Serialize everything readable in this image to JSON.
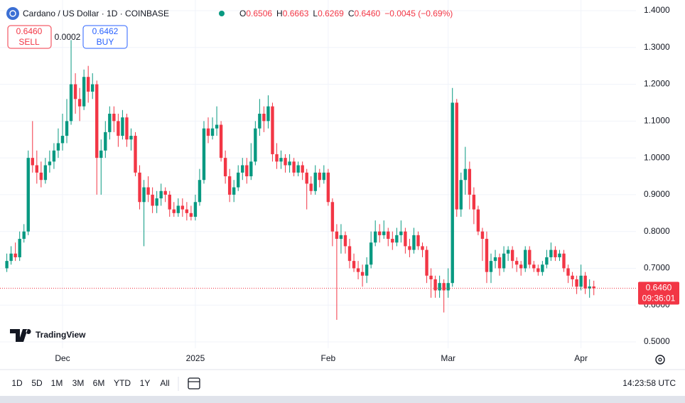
{
  "header": {
    "title": "Cardano / US Dollar · 1D · COINBASE",
    "legend": [
      {
        "label": "O",
        "value": "0.6506"
      },
      {
        "label": "H",
        "value": "0.6663"
      },
      {
        "label": "L",
        "value": "0.6269"
      },
      {
        "label": "C",
        "value": "0.6460"
      }
    ],
    "change": "−0.0045 (−0.69%)"
  },
  "trade": {
    "sell_price": "0.6460",
    "sell_label": "SELL",
    "spread": "0.0002",
    "buy_price": "0.6462",
    "buy_label": "BUY"
  },
  "branding": "TradingView",
  "chart_data": {
    "type": "candlestick",
    "up_color": "#089981",
    "down_color": "#f23645",
    "grid": true,
    "ylim": [
      0.4827,
      1.429
    ],
    "yticks": [
      {
        "value": 0.5,
        "label": "0.5000"
      },
      {
        "value": 0.6,
        "label": "0.6000"
      },
      {
        "value": 0.7,
        "label": "0.7000"
      },
      {
        "value": 0.8,
        "label": "0.8000"
      },
      {
        "value": 0.9,
        "label": "0.9000"
      },
      {
        "value": 1.0,
        "label": "1.0000"
      },
      {
        "value": 1.1,
        "label": "1.1000"
      },
      {
        "value": 1.2,
        "label": "1.2000"
      },
      {
        "value": 1.3,
        "label": "1.3000"
      },
      {
        "value": 1.4,
        "label": "1.4000"
      }
    ],
    "xticks": [
      {
        "value": 13,
        "label": "Dec"
      },
      {
        "value": 44,
        "label": "2025"
      },
      {
        "value": 75,
        "label": "Feb"
      },
      {
        "value": 103,
        "label": "Mar"
      },
      {
        "value": 134,
        "label": "Apr"
      }
    ],
    "price_label": {
      "value": 0.646,
      "label": "0.6460"
    },
    "countdown": "09:36:01",
    "ohlc": [
      [
        0.7,
        0.74,
        0.69,
        0.72
      ],
      [
        0.72,
        0.76,
        0.71,
        0.74
      ],
      [
        0.74,
        0.77,
        0.72,
        0.73
      ],
      [
        0.73,
        0.8,
        0.72,
        0.78
      ],
      [
        0.78,
        0.82,
        0.77,
        0.8
      ],
      [
        0.8,
        1.02,
        0.79,
        1.0
      ],
      [
        1.0,
        1.1,
        0.96,
        0.98
      ],
      [
        0.98,
        1.02,
        0.93,
        0.96
      ],
      [
        0.96,
        0.99,
        0.92,
        0.94
      ],
      [
        0.94,
        1.0,
        0.93,
        0.98
      ],
      [
        0.98,
        1.02,
        0.96,
        0.99
      ],
      [
        0.99,
        1.04,
        0.97,
        1.02
      ],
      [
        1.02,
        1.08,
        1.0,
        1.04
      ],
      [
        1.04,
        1.12,
        1.02,
        1.06
      ],
      [
        1.06,
        1.16,
        1.04,
        1.1
      ],
      [
        1.1,
        1.32,
        1.09,
        1.2
      ],
      [
        1.2,
        1.23,
        1.12,
        1.16
      ],
      [
        1.16,
        1.19,
        1.1,
        1.14
      ],
      [
        1.14,
        1.24,
        1.13,
        1.22
      ],
      [
        1.22,
        1.25,
        1.15,
        1.18
      ],
      [
        1.18,
        1.23,
        1.16,
        1.2
      ],
      [
        1.2,
        1.21,
        0.9,
        1.0
      ],
      [
        1.0,
        1.05,
        0.9,
        1.02
      ],
      [
        1.02,
        1.1,
        1.0,
        1.07
      ],
      [
        1.07,
        1.14,
        1.05,
        1.12
      ],
      [
        1.12,
        1.14,
        1.07,
        1.1
      ],
      [
        1.1,
        1.12,
        1.03,
        1.06
      ],
      [
        1.06,
        1.13,
        1.05,
        1.11
      ],
      [
        1.11,
        1.12,
        1.03,
        1.05
      ],
      [
        1.05,
        1.08,
        1.02,
        1.06
      ],
      [
        1.06,
        1.07,
        0.95,
        0.96
      ],
      [
        0.96,
        0.98,
        0.86,
        0.88
      ],
      [
        0.88,
        0.94,
        0.76,
        0.92
      ],
      [
        0.92,
        0.95,
        0.88,
        0.9
      ],
      [
        0.9,
        0.92,
        0.85,
        0.87
      ],
      [
        0.87,
        0.91,
        0.85,
        0.89
      ],
      [
        0.89,
        0.93,
        0.87,
        0.91
      ],
      [
        0.91,
        0.92,
        0.88,
        0.9
      ],
      [
        0.9,
        0.91,
        0.84,
        0.86
      ],
      [
        0.86,
        0.88,
        0.84,
        0.85
      ],
      [
        0.85,
        0.89,
        0.84,
        0.87
      ],
      [
        0.87,
        0.89,
        0.84,
        0.86
      ],
      [
        0.86,
        0.88,
        0.83,
        0.85
      ],
      [
        0.85,
        0.87,
        0.83,
        0.84
      ],
      [
        0.84,
        0.9,
        0.83,
        0.88
      ],
      [
        0.88,
        0.97,
        0.87,
        0.94
      ],
      [
        0.94,
        1.1,
        0.93,
        1.08
      ],
      [
        1.08,
        1.11,
        1.04,
        1.06
      ],
      [
        1.06,
        1.11,
        1.05,
        1.08
      ],
      [
        1.08,
        1.14,
        1.06,
        1.09
      ],
      [
        1.09,
        1.1,
        0.99,
        1.0
      ],
      [
        1.0,
        1.02,
        0.93,
        0.95
      ],
      [
        0.95,
        0.97,
        0.88,
        0.9
      ],
      [
        0.9,
        0.94,
        0.88,
        0.92
      ],
      [
        0.92,
        0.98,
        0.91,
        0.96
      ],
      [
        0.96,
        1.0,
        0.94,
        0.98
      ],
      [
        0.98,
        1.0,
        0.93,
        0.95
      ],
      [
        0.95,
        1.04,
        0.94,
        0.99
      ],
      [
        0.99,
        1.1,
        0.98,
        1.08
      ],
      [
        1.08,
        1.16,
        1.06,
        1.12
      ],
      [
        1.12,
        1.14,
        1.07,
        1.1
      ],
      [
        1.1,
        1.17,
        1.08,
        1.14
      ],
      [
        1.14,
        1.15,
        0.99,
        1.01
      ],
      [
        1.01,
        1.04,
        0.97,
        0.99
      ],
      [
        0.99,
        1.02,
        0.97,
        1.0
      ],
      [
        1.0,
        1.01,
        0.96,
        0.98
      ],
      [
        0.98,
        1.01,
        0.96,
        0.99
      ],
      [
        0.99,
        1.0,
        0.95,
        0.96
      ],
      [
        0.96,
        0.99,
        0.95,
        0.98
      ],
      [
        0.98,
        0.99,
        0.94,
        0.96
      ],
      [
        0.96,
        0.97,
        0.86,
        0.93
      ],
      [
        0.93,
        0.95,
        0.9,
        0.91
      ],
      [
        0.91,
        0.98,
        0.9,
        0.96
      ],
      [
        0.96,
        0.97,
        0.92,
        0.94
      ],
      [
        0.94,
        0.98,
        0.93,
        0.96
      ],
      [
        0.96,
        0.97,
        0.87,
        0.88
      ],
      [
        0.88,
        0.89,
        0.76,
        0.8
      ],
      [
        0.8,
        0.82,
        0.56,
        0.78
      ],
      [
        0.78,
        0.82,
        0.74,
        0.79
      ],
      [
        0.79,
        0.8,
        0.74,
        0.76
      ],
      [
        0.76,
        0.78,
        0.7,
        0.72
      ],
      [
        0.72,
        0.74,
        0.69,
        0.7
      ],
      [
        0.7,
        0.72,
        0.67,
        0.69
      ],
      [
        0.69,
        0.71,
        0.65,
        0.68
      ],
      [
        0.68,
        0.73,
        0.66,
        0.71
      ],
      [
        0.71,
        0.8,
        0.7,
        0.77
      ],
      [
        0.77,
        0.83,
        0.76,
        0.8
      ],
      [
        0.8,
        0.82,
        0.77,
        0.79
      ],
      [
        0.79,
        0.83,
        0.78,
        0.8
      ],
      [
        0.8,
        0.81,
        0.76,
        0.78
      ],
      [
        0.78,
        0.8,
        0.75,
        0.77
      ],
      [
        0.77,
        0.81,
        0.76,
        0.79
      ],
      [
        0.79,
        0.83,
        0.77,
        0.8
      ],
      [
        0.8,
        0.81,
        0.74,
        0.76
      ],
      [
        0.76,
        0.78,
        0.73,
        0.75
      ],
      [
        0.75,
        0.81,
        0.74,
        0.79
      ],
      [
        0.79,
        0.8,
        0.75,
        0.76
      ],
      [
        0.76,
        0.77,
        0.73,
        0.75
      ],
      [
        0.75,
        0.76,
        0.66,
        0.68
      ],
      [
        0.68,
        0.7,
        0.62,
        0.67
      ],
      [
        0.67,
        0.68,
        0.62,
        0.64
      ],
      [
        0.64,
        0.68,
        0.62,
        0.66
      ],
      [
        0.66,
        0.67,
        0.58,
        0.64
      ],
      [
        0.64,
        0.7,
        0.62,
        0.66
      ],
      [
        0.66,
        1.19,
        0.65,
        1.15
      ],
      [
        1.15,
        1.16,
        0.84,
        0.86
      ],
      [
        0.86,
        0.96,
        0.84,
        0.94
      ],
      [
        0.94,
        1.03,
        0.9,
        0.97
      ],
      [
        0.97,
        0.99,
        0.86,
        0.9
      ],
      [
        0.9,
        0.92,
        0.82,
        0.86
      ],
      [
        0.86,
        0.87,
        0.79,
        0.8
      ],
      [
        0.8,
        0.81,
        0.72,
        0.78
      ],
      [
        0.78,
        0.8,
        0.66,
        0.69
      ],
      [
        0.69,
        0.74,
        0.66,
        0.72
      ],
      [
        0.72,
        0.75,
        0.7,
        0.73
      ],
      [
        0.73,
        0.74,
        0.68,
        0.7
      ],
      [
        0.7,
        0.76,
        0.69,
        0.74
      ],
      [
        0.74,
        0.76,
        0.72,
        0.75
      ],
      [
        0.75,
        0.76,
        0.7,
        0.72
      ],
      [
        0.72,
        0.73,
        0.69,
        0.71
      ],
      [
        0.71,
        0.72,
        0.68,
        0.7
      ],
      [
        0.7,
        0.76,
        0.69,
        0.75
      ],
      [
        0.75,
        0.76,
        0.7,
        0.71
      ],
      [
        0.71,
        0.72,
        0.69,
        0.7
      ],
      [
        0.7,
        0.71,
        0.68,
        0.69
      ],
      [
        0.69,
        0.72,
        0.68,
        0.71
      ],
      [
        0.71,
        0.75,
        0.7,
        0.73
      ],
      [
        0.73,
        0.77,
        0.72,
        0.75
      ],
      [
        0.75,
        0.76,
        0.72,
        0.73
      ],
      [
        0.73,
        0.75,
        0.72,
        0.74
      ],
      [
        0.74,
        0.75,
        0.69,
        0.7
      ],
      [
        0.7,
        0.71,
        0.66,
        0.68
      ],
      [
        0.68,
        0.69,
        0.65,
        0.67
      ],
      [
        0.67,
        0.68,
        0.63,
        0.65
      ],
      [
        0.65,
        0.71,
        0.64,
        0.68
      ],
      [
        0.68,
        0.69,
        0.63,
        0.645
      ],
      [
        0.645,
        0.67,
        0.62,
        0.6506
      ],
      [
        0.6506,
        0.6663,
        0.6269,
        0.646
      ]
    ]
  },
  "toolbar": {
    "ranges": [
      "1D",
      "5D",
      "1M",
      "3M",
      "6M",
      "YTD",
      "1Y",
      "All"
    ],
    "clock": "14:23:58 UTC"
  }
}
